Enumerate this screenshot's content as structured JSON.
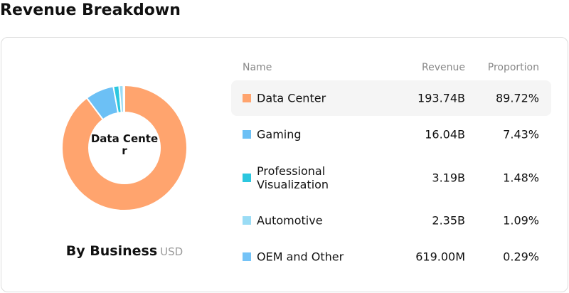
{
  "header": {
    "title": "Revenue Breakdown"
  },
  "chart_data": {
    "type": "pie",
    "title": "By Business",
    "subtitle": "USD",
    "center_label": "Data Center",
    "categories": [
      "Data Center",
      "Gaming",
      "Professional Visualization",
      "Automotive",
      "OEM and Other"
    ],
    "values": [
      89.72,
      7.43,
      1.48,
      1.09,
      0.29
    ],
    "value_labels": [
      "89.72%",
      "7.43%",
      "1.48%",
      "1.09%",
      "0.29%"
    ],
    "colors": [
      "#ffa46e",
      "#6cc0f5",
      "#2cc7df",
      "#9adcf5",
      "#74c3f7"
    ]
  },
  "table": {
    "headers": [
      "Name",
      "Revenue",
      "Proportion"
    ],
    "revenue": [
      "193.74B",
      "16.04B",
      "3.19B",
      "2.35B",
      "619.00M"
    ]
  }
}
